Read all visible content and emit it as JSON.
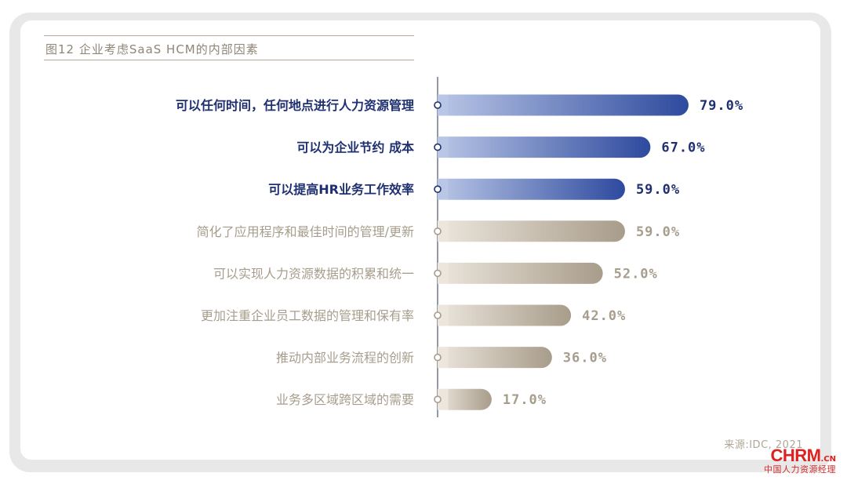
{
  "title": "图12 企业考虑SaaS HCM的内部因素",
  "source": "来源:IDC, 2021",
  "logo": {
    "main": "CHRM",
    "suffix": ".CN",
    "sub": "中国人力资源经理"
  },
  "colors": {
    "highlight_start": "#b9c6e6",
    "highlight_end": "#2e4a9e",
    "highlight_text": "#1f3070",
    "muted_start": "#ece6dd",
    "muted_end": "#a89c8a",
    "muted_text": "#a79d8d"
  },
  "chart_data": {
    "type": "bar",
    "orientation": "horizontal",
    "categories": [
      "可以任何时间，任何地点进行人力资源管理",
      "可以为企业节约 成本",
      "可以提高HR业务工作效率",
      "简化了应用程序和最佳时间的管理/更新",
      "可以实现人力资源数据的积累和统一",
      "更加注重企业员工数据的管理和保有率",
      "推动内部业务流程的创新",
      "业务多区域跨区域的需要"
    ],
    "values": [
      79.0,
      67.0,
      59.0,
      59.0,
      52.0,
      42.0,
      36.0,
      17.0
    ],
    "value_labels": [
      "79.0%",
      "67.0%",
      "59.0%",
      "59.0%",
      "52.0%",
      "42.0%",
      "36.0%",
      "17.0%"
    ],
    "highlighted": [
      true,
      true,
      true,
      false,
      false,
      false,
      false,
      false
    ],
    "xlim": [
      0,
      100
    ],
    "grid": false,
    "legend": "none"
  }
}
